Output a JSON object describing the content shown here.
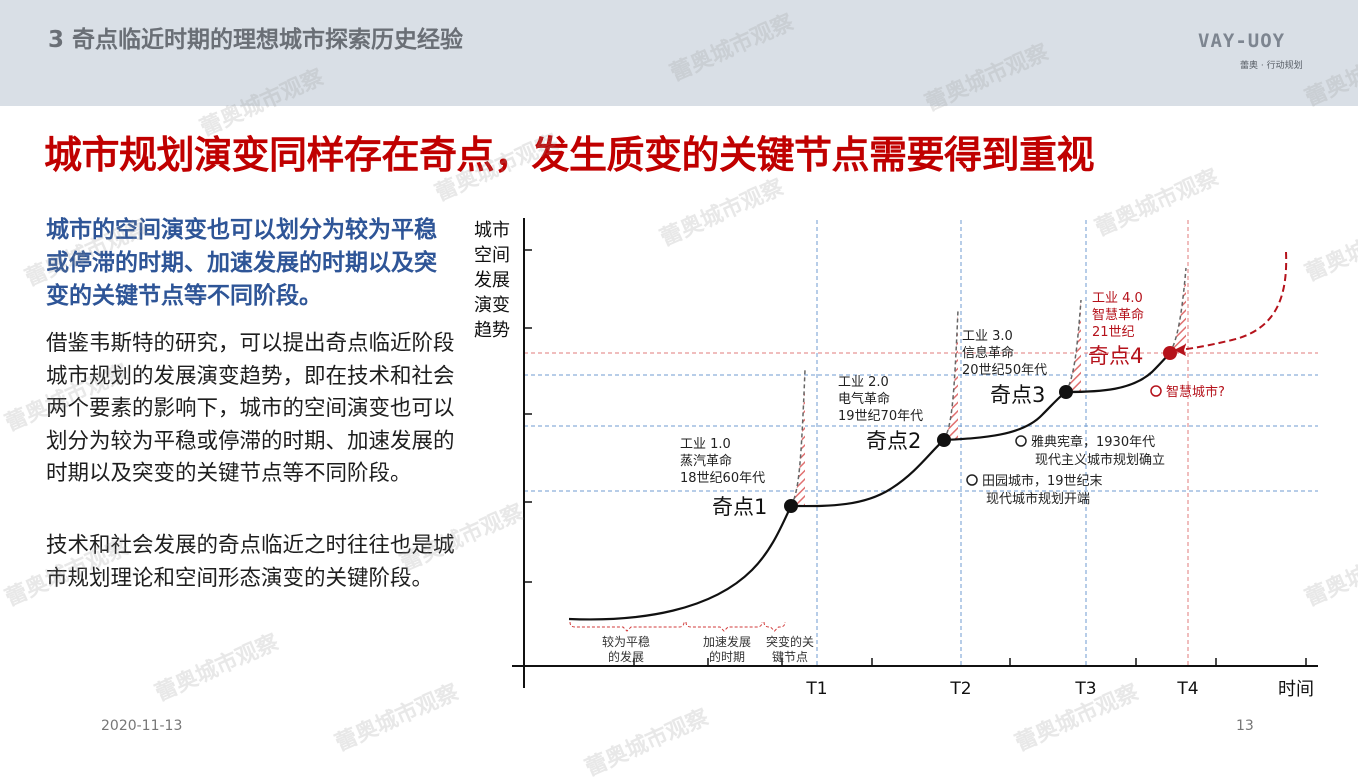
{
  "header": {
    "section_title": "3 奇点临近时期的理想城市探索历史经验",
    "logo_text": "VAY-UOY",
    "logo_sub": "蕾奥 · 行动规划"
  },
  "headline": "城市规划演变同样存在奇点，发生质变的关键节点需要得到重视",
  "intro": "城市的空间演变也可以划分为较为平稳或停滞的时期、加速发展的时期以及突变的关键节点等不同阶段。",
  "paragraphs": [
    "借鉴韦斯特的研究，可以提出奇点临近阶段城市规划的发展演变趋势，即在技术和社会两个要素的影响下，城市的空间演变也可以划分为较为平稳或停滞的时期、加速发展的时期以及突变的关键节点等不同阶段。",
    "技术和社会发展的奇点临近之时往往也是城市规划理论和空间形态演变的关键阶段。"
  ],
  "footer": {
    "date": "2020-11-13",
    "page": "13"
  },
  "watermark": "蕾奥城市观察",
  "colors": {
    "headline": "#c00000",
    "intro": "#2e5597",
    "header_band": "#d9dfe6",
    "curve": "#111111",
    "future": "#b5121b",
    "guide": "#6f9bd1"
  },
  "chart_data": {
    "type": "line",
    "ylabel": [
      "城市",
      "空间",
      "发展",
      "演变",
      "趋势"
    ],
    "xlabel": "时间",
    "x_ticks": [
      "T1",
      "T2",
      "T3",
      "T4"
    ],
    "phases": [
      "较为平稳\n的发展",
      "加速发展\n的时期",
      "突变的关\n键节点"
    ],
    "singularities": [
      {
        "label": "奇点1",
        "x_tick": "T1",
        "note": [
          "工业 1.0",
          "蒸汽革命",
          "18世纪60年代"
        ]
      },
      {
        "label": "奇点2",
        "x_tick": "T2",
        "note": [
          "工业 2.0",
          "电气革命",
          "19世纪70年代"
        ]
      },
      {
        "label": "奇点3",
        "x_tick": "T3",
        "note": [
          "工业 3.0",
          "信息革命",
          "20世纪50年代"
        ]
      },
      {
        "label": "奇点4",
        "x_tick": "T4",
        "note": [
          "工业 4.0",
          "智慧革命",
          "21世纪"
        ],
        "highlight": true
      }
    ],
    "events": [
      [
        "田园城市，19世纪末",
        "现代城市规划开端"
      ],
      [
        "雅典宪章，1930年代",
        "现代主义城市规划确立"
      ],
      [
        "智慧城市?"
      ]
    ],
    "grid": false,
    "legend": "none"
  }
}
